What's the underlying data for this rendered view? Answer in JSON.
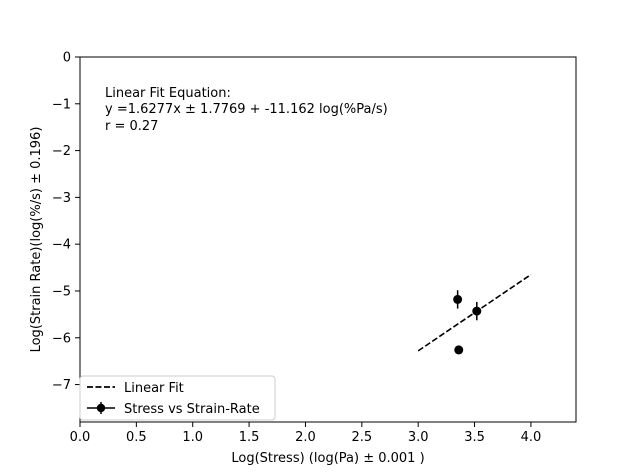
{
  "chart_data": {
    "type": "scatter",
    "xlabel": "Log(Stress) (log(Pa) ± 0.001 )",
    "ylabel": "Log(Strain Rate)(log(%/s) ± 0.196)",
    "xlim": [
      0.0,
      4.4
    ],
    "ylim": [
      -7.8,
      0.0
    ],
    "x_ticks": [
      "0.0",
      "0.5",
      "1.0",
      "1.5",
      "2.0",
      "2.5",
      "3.0",
      "3.5",
      "4.0"
    ],
    "y_ticks": [
      "0",
      "−1",
      "−2",
      "−3",
      "−4",
      "−5",
      "−6",
      "−7"
    ],
    "grid": false,
    "annotation": [
      "Linear Fit Equation:",
      "y =1.6277x ± 1.7769 + -11.162 log(%Pa/s)",
      "r = 0.27"
    ],
    "series": [
      {
        "name": "Stress vs Strain-Rate",
        "kind": "errorbar",
        "color": "#000000",
        "points": [
          {
            "x": 3.35,
            "y": -5.18,
            "yerr": 0.196
          },
          {
            "x": 3.52,
            "y": -5.43,
            "yerr": 0.196
          },
          {
            "x": 3.36,
            "y": -6.26,
            "yerr": 0.0
          }
        ]
      },
      {
        "name": "Linear Fit",
        "kind": "line",
        "style": "dashed",
        "color": "#000000",
        "x": [
          3.0,
          4.0
        ],
        "y": [
          -6.28,
          -4.65
        ]
      }
    ],
    "legend": {
      "placement": "lower-left",
      "entries": [
        "Linear Fit",
        "Stress vs Strain-Rate"
      ]
    }
  }
}
